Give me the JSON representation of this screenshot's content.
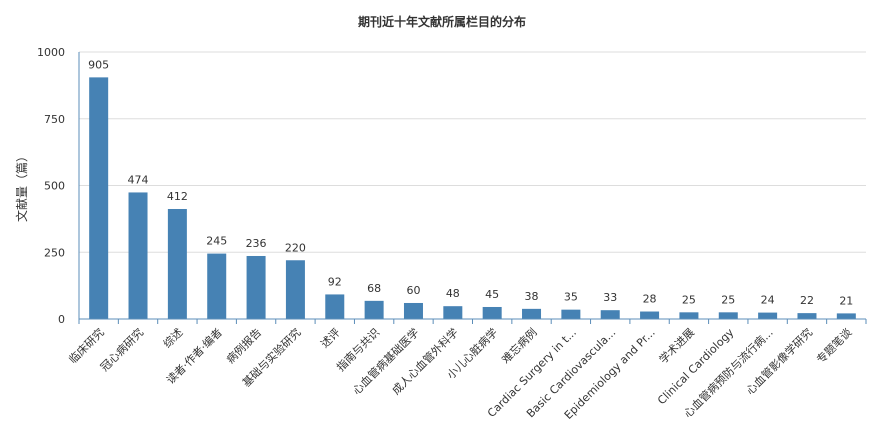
{
  "chart_data": {
    "type": "bar",
    "title": "期刊近十年文献所属栏目的分布",
    "xlabel": "",
    "ylabel": "文献量（篇）",
    "ylim": [
      0,
      1000
    ],
    "yticks": [
      "0",
      "250",
      "500",
      "750",
      "1000"
    ],
    "grid": true,
    "bar_color": "#4682b4",
    "categories": [
      "临床研究",
      "冠心病研究",
      "综述",
      "读者·作者·编者",
      "病例报告",
      "基础与实验研究",
      "述评",
      "指南与共识",
      "心血管病基础医学",
      "成人心血管外科学",
      "小儿心脏病学",
      "难忘病例",
      "Cardiac Surgery in t...",
      "Basic Cardiovascula...",
      "Epidemiology and Pr...",
      "学术进展",
      "Clinical Cardiology",
      "心血管病预防与流行病...",
      "心血管影像学研究",
      "专题笔谈"
    ],
    "values": [
      905,
      474,
      412,
      245,
      236,
      220,
      92,
      68,
      60,
      48,
      45,
      38,
      35,
      33,
      28,
      25,
      25,
      24,
      22,
      21
    ]
  }
}
